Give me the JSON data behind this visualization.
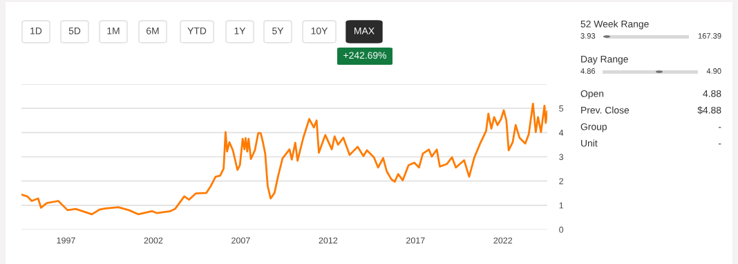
{
  "chart_data": [
    {
      "type": "line",
      "annotations": [
        "1D",
        "5D",
        "1M",
        "6M",
        "YTD",
        "1Y",
        "5Y",
        "10Y",
        "MAX",
        "+242.69%"
      ],
      "xlim": [
        1994.45,
        2024.54
      ],
      "xticks": [
        1997,
        2002,
        2007,
        2012,
        2017,
        2022
      ],
      "ylim": [
        0,
        6
      ],
      "yticks": [
        0,
        1,
        2,
        3,
        4,
        5,
        {
          "value": 6,
          "label": null
        }
      ],
      "grid": "y",
      "legend": false,
      "series": [
        {
          "color": "#ff7b00",
          "x": [
            1994.45,
            1994.78,
            1995.04,
            1995.41,
            1995.57,
            1995.9,
            1996.56,
            1997.09,
            1997.56,
            1998.48,
            1998.94,
            1999.27,
            2000.0,
            2000.6,
            2001.13,
            2001.92,
            2002.19,
            2002.98,
            2003.24,
            2003.77,
            2004.04,
            2004.43,
            2005.03,
            2005.29,
            2005.56,
            2005.82,
            2006.02,
            2006.13,
            2006.22,
            2006.35,
            2006.55,
            2006.81,
            2006.95,
            2007.11,
            2007.21,
            2007.28,
            2007.37,
            2007.45,
            2007.58,
            2007.81,
            2008.0,
            2008.14,
            2008.27,
            2008.4,
            2008.54,
            2008.71,
            2008.93,
            2009.13,
            2009.39,
            2009.79,
            2009.92,
            2010.12,
            2010.25,
            2010.58,
            2010.92,
            2011.18,
            2011.34,
            2011.47,
            2011.84,
            2012.21,
            2012.37,
            2012.57,
            2012.87,
            2013.23,
            2013.69,
            2014.02,
            2014.22,
            2014.62,
            2014.86,
            2015.15,
            2015.35,
            2015.61,
            2015.81,
            2016.01,
            2016.27,
            2016.6,
            2016.93,
            2017.2,
            2017.42,
            2017.77,
            2017.93,
            2018.22,
            2018.39,
            2018.79,
            2019.09,
            2019.31,
            2019.78,
            2020.07,
            2020.37,
            2020.7,
            2021.04,
            2021.17,
            2021.34,
            2021.5,
            2021.69,
            2021.89,
            2022.05,
            2022.2,
            2022.33,
            2022.56,
            2022.73,
            2022.95,
            2023.28,
            2023.48,
            2023.72,
            2023.88,
            2024.01,
            2024.18,
            2024.38,
            2024.45,
            2024.54
          ],
          "values": [
            1.44,
            1.37,
            1.18,
            1.28,
            0.9,
            1.09,
            1.18,
            0.8,
            0.85,
            0.63,
            0.83,
            0.87,
            0.92,
            0.8,
            0.63,
            0.76,
            0.68,
            0.76,
            0.85,
            1.37,
            1.23,
            1.49,
            1.51,
            1.8,
            2.18,
            2.22,
            2.51,
            4.02,
            3.22,
            3.6,
            3.27,
            2.46,
            2.65,
            3.74,
            3.31,
            3.77,
            3.22,
            3.74,
            2.91,
            3.27,
            3.98,
            3.98,
            3.6,
            3.13,
            1.8,
            1.28,
            1.51,
            2.18,
            2.93,
            3.31,
            2.89,
            3.58,
            2.84,
            3.79,
            4.56,
            4.21,
            4.5,
            3.17,
            3.9,
            3.31,
            3.84,
            3.5,
            3.79,
            3.08,
            3.41,
            3.03,
            3.27,
            2.98,
            2.56,
            2.95,
            2.41,
            2.08,
            1.97,
            2.29,
            2.03,
            2.65,
            2.76,
            2.56,
            3.13,
            3.3,
            3.01,
            3.3,
            2.6,
            2.7,
            2.98,
            2.56,
            2.86,
            2.18,
            2.98,
            3.55,
            4.07,
            4.78,
            4.16,
            4.64,
            4.31,
            4.55,
            4.92,
            4.5,
            3.27,
            3.6,
            4.31,
            3.79,
            3.55,
            3.93,
            5.19,
            4.02,
            4.64,
            4.02,
            5.11,
            4.4,
            4.88
          ]
        }
      ]
    },
    {
      "type": "other",
      "annotations": [
        "52 Week Range",
        "3.93",
        "167.39",
        "Day Range",
        "4.86",
        "4.90",
        "Open",
        "4.88",
        "Prev. Close",
        "$4.88",
        "Group",
        "-",
        "Unit",
        "-"
      ]
    }
  ]
}
